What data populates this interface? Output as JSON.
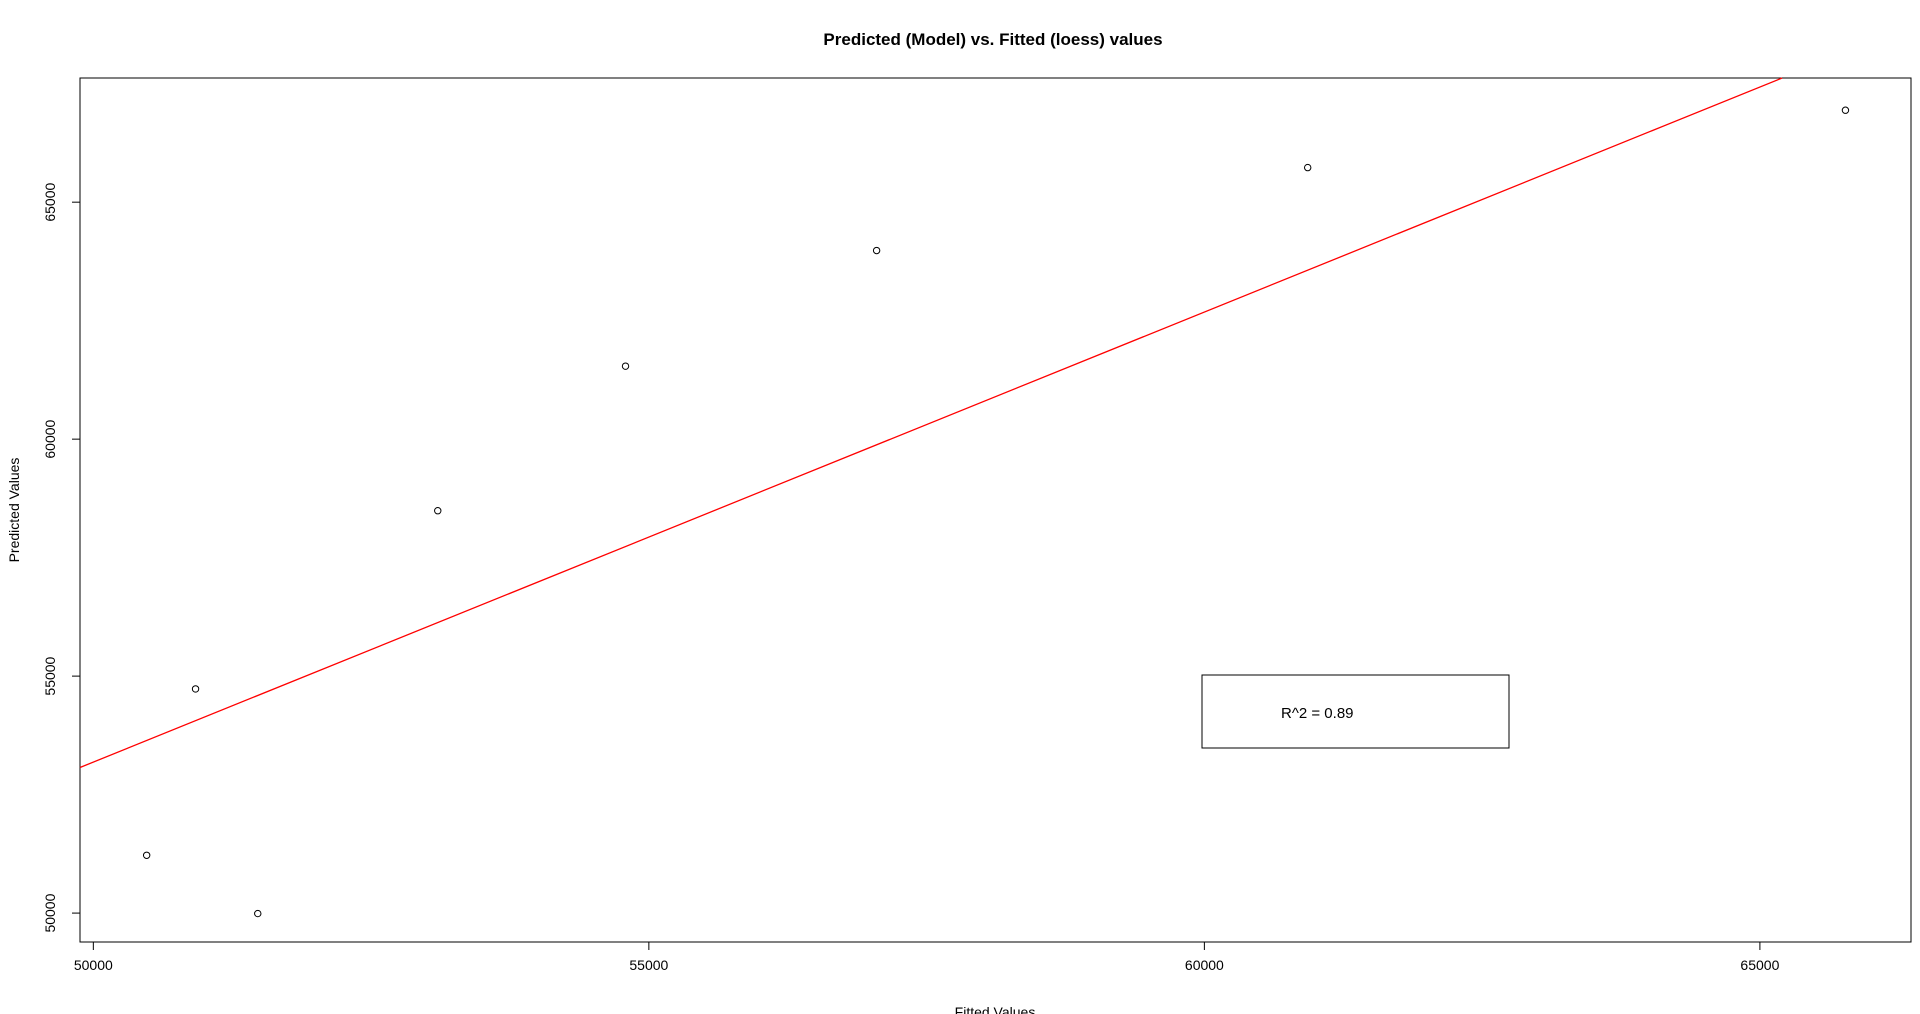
{
  "chart_data": {
    "type": "scatter",
    "title": "Predicted (Model) vs. Fitted (loess) values",
    "xlabel": "Fitted Values",
    "ylabel": "Predicted Values",
    "xlim": [
      49880,
      66360
    ],
    "ylim": [
      49390,
      67620
    ],
    "x_ticks": [
      50000,
      55000,
      60000,
      65000
    ],
    "y_ticks": [
      50000,
      55000,
      60000,
      65000
    ],
    "x_tick_labels": [
      "50000",
      "55000",
      "60000",
      "65000"
    ],
    "y_tick_labels": [
      "50000",
      "55000",
      "60000",
      "65000"
    ],
    "grid": false,
    "points": [
      {
        "x": 50480,
        "y": 51220
      },
      {
        "x": 50920,
        "y": 54730
      },
      {
        "x": 51480,
        "y": 49990
      },
      {
        "x": 53100,
        "y": 58490
      },
      {
        "x": 54790,
        "y": 61540
      },
      {
        "x": 57050,
        "y": 63980
      },
      {
        "x": 60930,
        "y": 65730
      },
      {
        "x": 65770,
        "y": 66940
      }
    ],
    "point_color": "#000000",
    "regression_line": {
      "intercept": 5706,
      "slope": 0.9496,
      "color": "#ff0000"
    },
    "legend": {
      "text": "R^2 = 0.89",
      "placement": "bottom-right"
    }
  }
}
